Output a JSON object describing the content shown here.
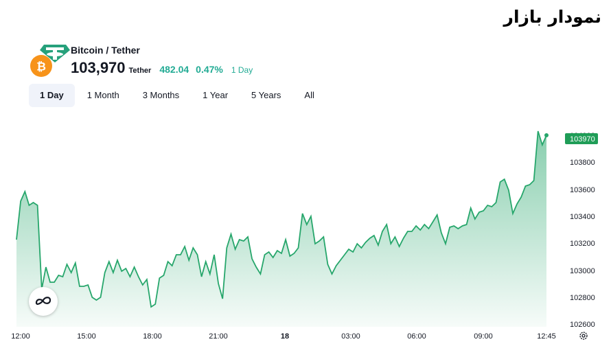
{
  "page": {
    "title": "نمودار بازار"
  },
  "widget": {
    "pair": "Bitcoin / Tether",
    "price": "103,970",
    "quote_currency": "Tether",
    "change": "482.04",
    "change_percent": "0.47%",
    "period": "1 Day",
    "tabs": [
      "1 Day",
      "1 Month",
      "3 Months",
      "1 Year",
      "5 Years",
      "All"
    ],
    "active_tab": "1 Day"
  },
  "colors": {
    "up": "#22ab94",
    "line": "#26a66b",
    "text": "#131722"
  },
  "icons": [
    "bitcoin-icon",
    "tether-icon",
    "tradingview-logo-icon",
    "settings-icon"
  ],
  "chart_data": {
    "type": "area",
    "x_tick_labels": [
      "12:00",
      "15:00",
      "18:00",
      "21:00",
      "18",
      "03:00",
      "06:00",
      "09:00",
      "12:45"
    ],
    "y_tick_labels": [
      "104000",
      "103800",
      "103600",
      "103400",
      "103200",
      "103000",
      "102800",
      "102600"
    ],
    "current_value_label": "103970",
    "ylim": [
      102600,
      104050
    ],
    "series": [
      {
        "values": [
          103210,
          103490,
          103560,
          103460,
          103480,
          103460,
          102850,
          103010,
          102900,
          102900,
          102950,
          102940,
          103030,
          102970,
          103040,
          102870,
          102870,
          102880,
          102790,
          102770,
          102790,
          102970,
          103050,
          102970,
          103060,
          102980,
          103000,
          102940,
          103010,
          102940,
          102880,
          102920,
          102720,
          102740,
          102930,
          102950,
          103050,
          103020,
          103100,
          103100,
          103160,
          103060,
          103150,
          103100,
          102940,
          103050,
          102960,
          103100,
          102890,
          102780,
          103150,
          103250,
          103140,
          103210,
          103200,
          103230,
          103070,
          103010,
          102960,
          103100,
          103120,
          103080,
          103130,
          103110,
          103210,
          103090,
          103110,
          103150,
          103400,
          103320,
          103380,
          103180,
          103200,
          103230,
          103030,
          102960,
          103020,
          103060,
          103100,
          103140,
          103120,
          103180,
          103150,
          103190,
          103220,
          103240,
          103170,
          103270,
          103320,
          103180,
          103230,
          103160,
          103220,
          103270,
          103270,
          103310,
          103280,
          103320,
          103290,
          103340,
          103390,
          103260,
          103180,
          103300,
          103310,
          103290,
          103310,
          103320,
          103440,
          103360,
          103410,
          103420,
          103460,
          103450,
          103480,
          103630,
          103650,
          103570,
          103400,
          103470,
          103520,
          103600,
          103610,
          103640,
          104000,
          103900,
          103970
        ]
      }
    ]
  }
}
